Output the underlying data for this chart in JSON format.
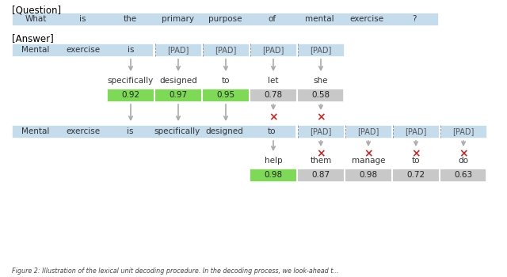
{
  "question_label": "[Question]",
  "answer_label": "[Answer]",
  "question_words": [
    "What",
    "is",
    "the",
    "primary",
    "purpose",
    "of",
    "mental",
    "exercise",
    "?"
  ],
  "bg_blue": "#c5dced",
  "bg_green": "#7ed957",
  "bg_gray": "#c8c8c8",
  "row1_words": [
    "Mental",
    "exercise",
    "is",
    "[PAD]",
    "[PAD]",
    "[PAD]",
    "[PAD]"
  ],
  "row2_words": [
    "specifically",
    "designed",
    "to",
    "let",
    "she"
  ],
  "row2_scores": [
    0.92,
    0.97,
    0.95,
    0.78,
    0.58
  ],
  "row2_green": [
    true,
    true,
    true,
    false,
    false
  ],
  "row3_words": [
    "Mental",
    "exercise",
    "is",
    "specifically",
    "designed",
    "to",
    "[PAD]",
    "[PAD]",
    "[PAD]",
    "[PAD]"
  ],
  "row4_words": [
    "help",
    "them",
    "manage",
    "to",
    "do"
  ],
  "row4_scores": [
    0.98,
    0.87,
    0.98,
    0.72,
    0.63
  ],
  "row4_green": [
    true,
    false,
    false,
    false,
    false
  ],
  "arrow_color": "#aaaaaa",
  "cross_color": "#cc2222",
  "text_color": "#333333",
  "figure_caption": "Figure 2: Illustration of the lexical unit decoding procedure. In the decoding process, we look-ahead t..."
}
